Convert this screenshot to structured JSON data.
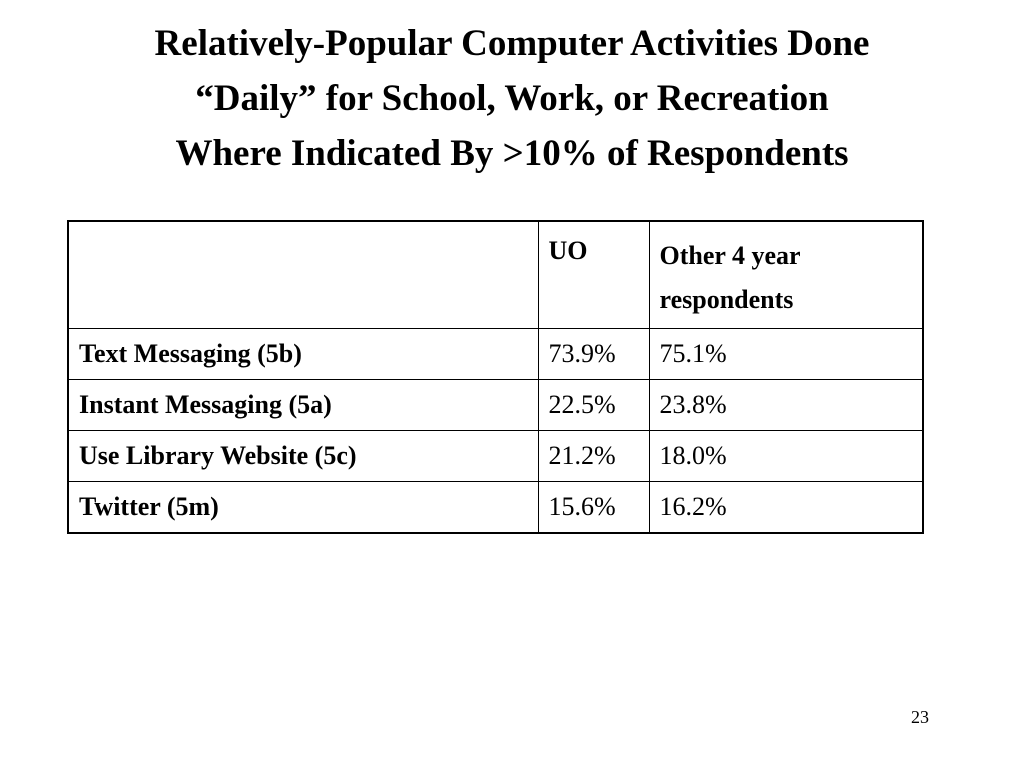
{
  "slide": {
    "title_lines": [
      "Relatively-Popular Computer Activities Done",
      "“Daily” for School, Work, or Recreation",
      "Where Indicated By >10% of Respondents"
    ],
    "page_number": "23"
  },
  "table": {
    "headers": [
      "",
      "UO",
      "Other 4 year respondents"
    ],
    "rows": [
      {
        "activity": "Text Messaging (5b)",
        "uo": "73.9%",
        "other": "75.1%"
      },
      {
        "activity": "Instant Messaging (5a)",
        "uo": "22.5%",
        "other": "23.8%"
      },
      {
        "activity": "Use Library Website (5c)",
        "uo": "21.2%",
        "other": "18.0%"
      },
      {
        "activity": "Twitter (5m)",
        "uo": "15.6%",
        "other": "16.2%"
      }
    ]
  }
}
